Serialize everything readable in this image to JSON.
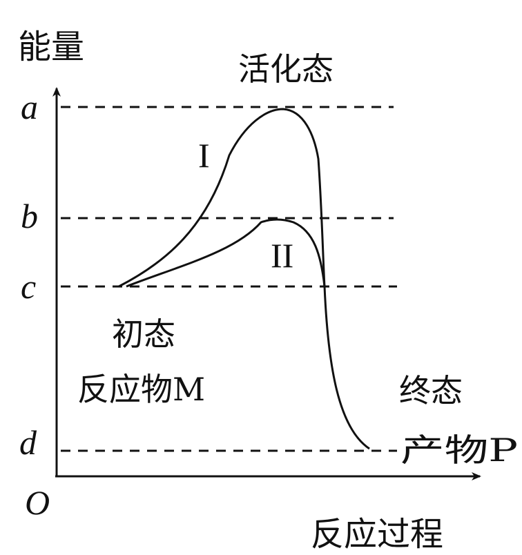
{
  "axes": {
    "y_label": "能量",
    "x_label": "反应过程",
    "origin": "O"
  },
  "levels": [
    "a",
    "b",
    "c",
    "d"
  ],
  "annotations": {
    "activated_state": "活化态",
    "initial_state": "初态",
    "reactant": "反应物M",
    "final_state": "终态",
    "product": "产物P"
  },
  "curves": {
    "path_1": "I",
    "path_2": "II"
  }
}
